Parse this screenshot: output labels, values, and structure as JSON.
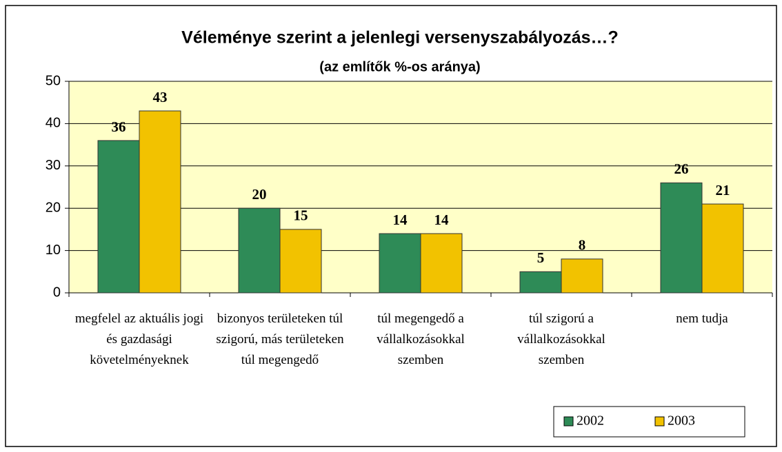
{
  "chart_data": {
    "type": "bar",
    "title": "Véleménye szerint a jelenlegi versenyszabályozás…?",
    "subtitle": "(az említők %-os aránya)",
    "categories": [
      "megfelel az aktuális jogi és gazdasági követelményeknek",
      "bizonyos területeken túl szigorú, más területeken túl megengedő",
      "túl megengedő a vállalkozásokkal szemben",
      "túl szigorú a vállalkozásokkal szemben",
      "nem tudja"
    ],
    "series": [
      {
        "name": "2002",
        "color": "#2e8b57",
        "values": [
          36,
          20,
          14,
          5,
          26
        ]
      },
      {
        "name": "2003",
        "color": "#f2c200",
        "values": [
          43,
          15,
          14,
          8,
          21
        ]
      }
    ],
    "ylim": [
      0,
      50
    ],
    "yticks": [
      0,
      10,
      20,
      30,
      40,
      50
    ],
    "grid": true,
    "legend": "bottom-right"
  }
}
